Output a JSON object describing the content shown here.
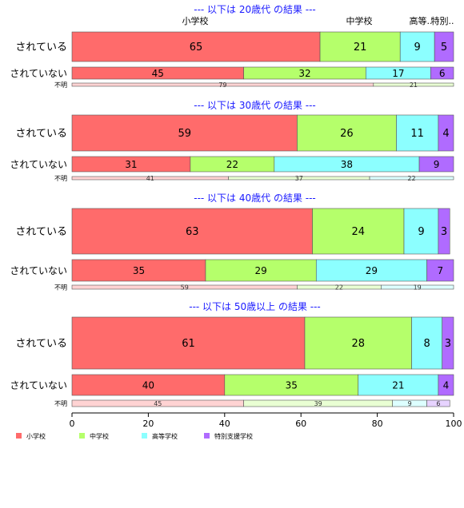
{
  "chart_data": {
    "type": "bar",
    "orientation": "horizontal",
    "stacked": true,
    "percent": true,
    "xlim": [
      0,
      100
    ],
    "xticks": [
      "0",
      "20",
      "40",
      "60",
      "80",
      "100"
    ],
    "grid": false,
    "legend_position": "bottom-left",
    "categories": [
      "小学校",
      "中学校",
      "高等学校",
      "特別支援学校"
    ],
    "colors": [
      "#ff6b6b",
      "#b5ff6b",
      "#8cffff",
      "#b06bff"
    ],
    "column_headers": [
      "小学校",
      "中学校",
      "高等..",
      "特別.."
    ],
    "groups": [
      {
        "title": "--- 以下は 20歳代 の結果 ---",
        "rows": [
          {
            "label": "されている",
            "values": [
              65,
              21,
              9,
              5
            ]
          },
          {
            "label": "されていない",
            "values": [
              45,
              32,
              17,
              6
            ]
          },
          {
            "label": "不明",
            "values": [
              79,
              21,
              0,
              0
            ]
          }
        ]
      },
      {
        "title": "--- 以下は 30歳代 の結果 ---",
        "rows": [
          {
            "label": "されている",
            "values": [
              59,
              26,
              11,
              4
            ]
          },
          {
            "label": "されていない",
            "values": [
              31,
              22,
              38,
              9
            ]
          },
          {
            "label": "不明",
            "values": [
              41,
              37,
              22,
              0
            ]
          }
        ]
      },
      {
        "title": "--- 以下は 40歳代 の結果 ---",
        "rows": [
          {
            "label": "されている",
            "values": [
              63,
              24,
              9,
              3
            ]
          },
          {
            "label": "されていない",
            "values": [
              35,
              29,
              29,
              7
            ]
          },
          {
            "label": "不明",
            "values": [
              59,
              22,
              19,
              0
            ]
          }
        ]
      },
      {
        "title": "--- 以下は 50歳以上 の結果 ---",
        "rows": [
          {
            "label": "されている",
            "values": [
              61,
              28,
              8,
              3
            ]
          },
          {
            "label": "されていない",
            "values": [
              40,
              35,
              21,
              4
            ]
          },
          {
            "label": "不明",
            "values": [
              45,
              39,
              9,
              6
            ]
          }
        ]
      }
    ]
  }
}
